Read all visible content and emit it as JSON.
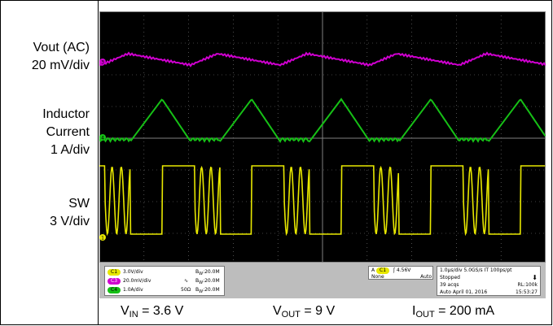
{
  "labels": {
    "vout_line1": "Vout (AC)",
    "vout_line2": "20 mV/div",
    "il_line1": "Inductor",
    "il_line2": "Current",
    "il_line3": "1 A/div",
    "sw_line1": "SW",
    "sw_line2": "3 V/div"
  },
  "scope": {
    "channels": [
      {
        "id": "C1",
        "scale": "3.0V/div",
        "bw": "20.0M",
        "color": "#e7e700"
      },
      {
        "id": "C3",
        "scale": "20.0mV/div",
        "bw": "20.0M",
        "color": "#d000d0"
      },
      {
        "id": "C4",
        "scale": "1.0A/div",
        "bw": "20.0M",
        "color": "#16c016",
        "impedance": "50Ω"
      }
    ],
    "trigger": {
      "source": "A",
      "channel": "C1",
      "level": "4.56V",
      "coupling": "None",
      "mode": "Auto"
    },
    "acquisition": {
      "timebase": "1.0µs/div",
      "sample_rate": "5.0GS/s",
      "it": "IT",
      "resolution": "100ps/pt",
      "status": "Stopped",
      "acqs": "39 acqs",
      "record_length": "RL:100k",
      "mode": "Auto",
      "date": "April 01, 2016",
      "time": "15:53:27"
    },
    "marker_labels": {
      "ch1": "1",
      "ch3": "3",
      "ch4": "4"
    }
  },
  "conditions": {
    "vin": {
      "symbol": "V",
      "subscript": "IN",
      "value": " = 3.6 V"
    },
    "vout": {
      "symbol": "V",
      "subscript": "OUT",
      "value": " = 9 V"
    },
    "iout": {
      "symbol": "I",
      "subscript": "OUT",
      "value": " = 200 mA"
    }
  },
  "colors": {
    "yellow": "#e7e700",
    "magenta": "#d000d0",
    "green": "#16c016",
    "grid": "#808080"
  }
}
